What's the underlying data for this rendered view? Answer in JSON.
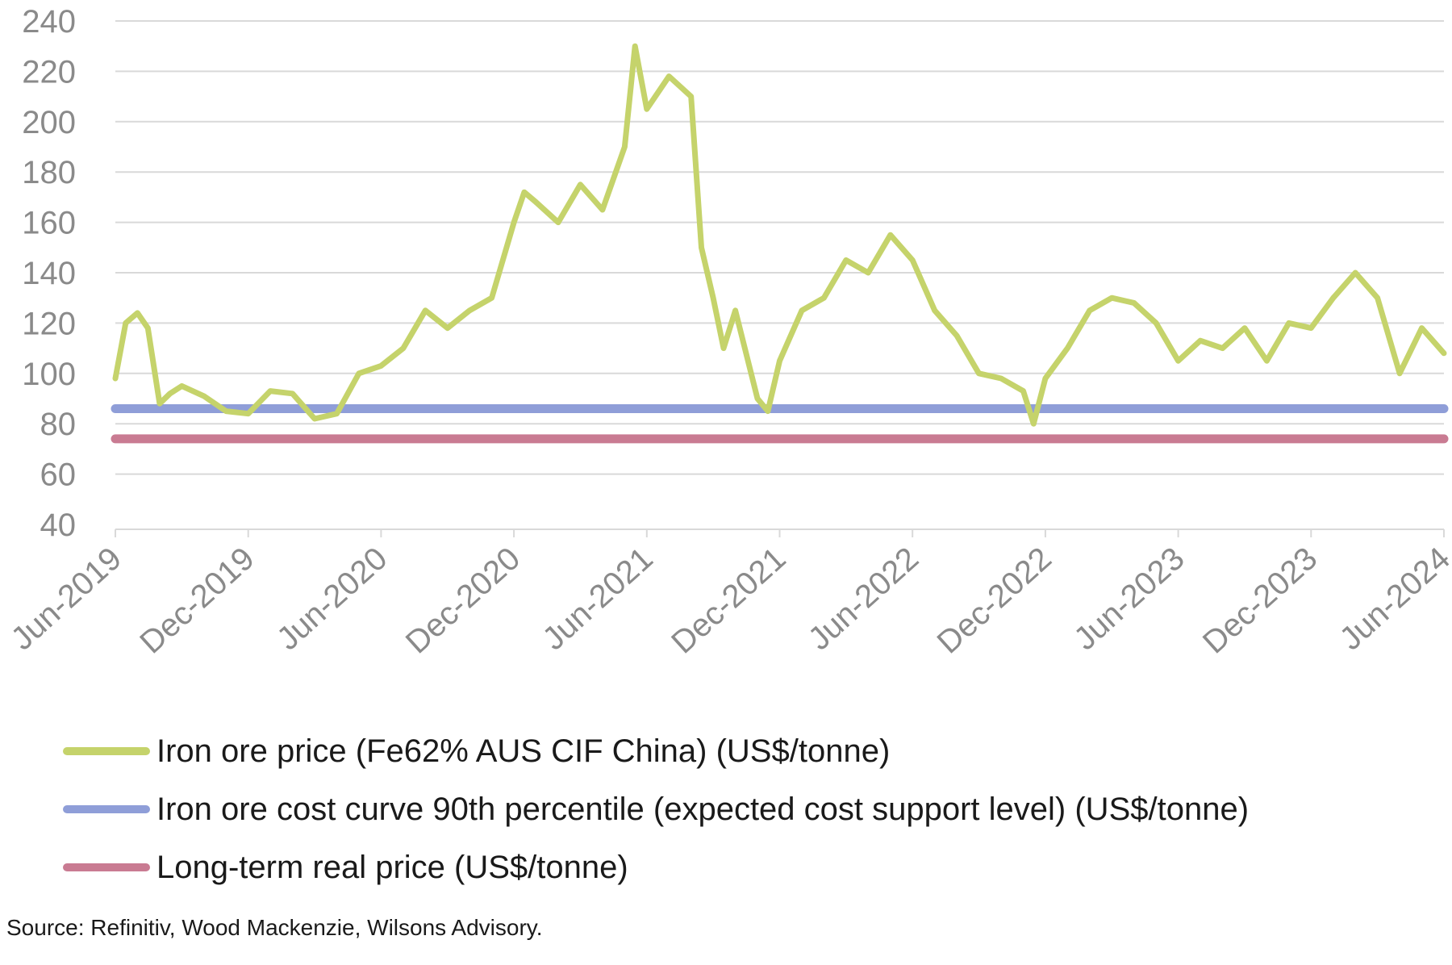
{
  "chart_data": {
    "type": "line",
    "title": "",
    "xlabel": "",
    "ylabel": "",
    "ylim": [
      40,
      240
    ],
    "yticks": [
      40,
      60,
      80,
      100,
      120,
      140,
      160,
      180,
      200,
      220,
      240
    ],
    "xlim": [
      "2019-06",
      "2024-06"
    ],
    "xticks": [
      "Jun-2019",
      "Dec-2019",
      "Jun-2020",
      "Dec-2020",
      "Jun-2021",
      "Dec-2021",
      "Jun-2022",
      "Dec-2022",
      "Jun-2023",
      "Dec-2023",
      "Jun-2024"
    ],
    "grid": true,
    "legend_position": "bottom",
    "series": [
      {
        "name": "Iron ore price (Fe62% AUS CIF China) (US$/tonne)",
        "color": "#c5d36b",
        "x": [
          "2019-06",
          "2019-06-15",
          "2019-07",
          "2019-07-15",
          "2019-08",
          "2019-08-15",
          "2019-09",
          "2019-10",
          "2019-11",
          "2019-12",
          "2020-01",
          "2020-02",
          "2020-03",
          "2020-04",
          "2020-05",
          "2020-06",
          "2020-07",
          "2020-08",
          "2020-09",
          "2020-10",
          "2020-11",
          "2020-12",
          "2020-12-15",
          "2021-01",
          "2021-02",
          "2021-03",
          "2021-04",
          "2021-05",
          "2021-05-15",
          "2021-06",
          "2021-07",
          "2021-08",
          "2021-08-15",
          "2021-09",
          "2021-09-15",
          "2021-10",
          "2021-11",
          "2021-11-15",
          "2021-12",
          "2022-01",
          "2022-02",
          "2022-03",
          "2022-04",
          "2022-05",
          "2022-06",
          "2022-07",
          "2022-08",
          "2022-09",
          "2022-10",
          "2022-11",
          "2022-11-15",
          "2022-12",
          "2023-01",
          "2023-02",
          "2023-03",
          "2023-04",
          "2023-05",
          "2023-06",
          "2023-07",
          "2023-08",
          "2023-09",
          "2023-10",
          "2023-11",
          "2023-12",
          "2024-01",
          "2024-02",
          "2024-03",
          "2024-04",
          "2024-05",
          "2024-06"
        ],
        "values": [
          98,
          120,
          124,
          118,
          88,
          92,
          95,
          91,
          85,
          84,
          93,
          92,
          82,
          84,
          100,
          103,
          110,
          125,
          118,
          125,
          130,
          160,
          172,
          168,
          160,
          175,
          165,
          190,
          230,
          205,
          218,
          210,
          150,
          130,
          110,
          125,
          90,
          85,
          105,
          125,
          130,
          145,
          140,
          155,
          145,
          125,
          115,
          100,
          98,
          93,
          80,
          98,
          110,
          125,
          130,
          128,
          120,
          105,
          113,
          110,
          118,
          105,
          120,
          118,
          130,
          140,
          130,
          100,
          118,
          108
        ]
      },
      {
        "name": "Iron ore cost curve 90th percentile (expected cost support level) (US$/tonne)",
        "color": "#8f9ed8",
        "x": [
          "2019-06",
          "2024-06"
        ],
        "values": [
          86,
          86
        ]
      },
      {
        "name": "Long-term real price (US$/tonne)",
        "color": "#c97b92",
        "x": [
          "2019-06",
          "2024-06"
        ],
        "values": [
          74,
          74
        ]
      }
    ]
  },
  "source": "Source: Refinitiv, Wood Mackenzie, Wilsons Advisory."
}
